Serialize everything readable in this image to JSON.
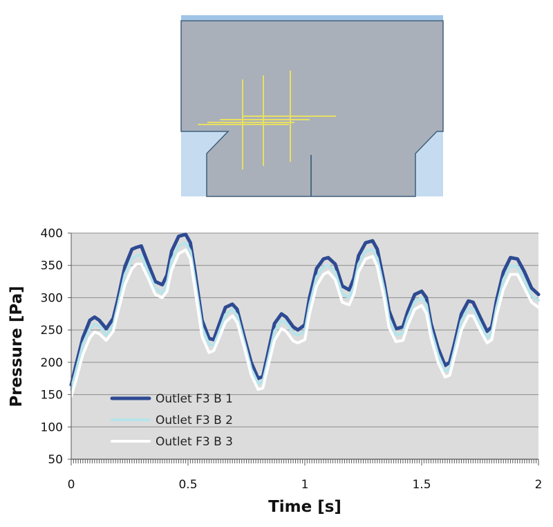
{
  "geometry_panel": {
    "colors": {
      "background": "#c5dbf0",
      "body": "#a9b0ba",
      "outline": "#3e5f7a",
      "probe_lines": "#e9df63"
    }
  },
  "chart_data": {
    "type": "line",
    "xlabel": "Time [s]",
    "ylabel": "Pressure [Pa]",
    "xlim": [
      0,
      2
    ],
    "ylim": [
      50,
      400
    ],
    "x_ticks": [
      {
        "value": 0,
        "label": "0"
      },
      {
        "value": 0.5,
        "label": "0.5"
      },
      {
        "value": 1,
        "label": "1"
      },
      {
        "value": 1.5,
        "label": "1.5"
      },
      {
        "value": 2,
        "label": "2"
      }
    ],
    "y_ticks": [
      {
        "value": 50,
        "label": "50"
      },
      {
        "value": 100,
        "label": "100"
      },
      {
        "value": 150,
        "label": "150"
      },
      {
        "value": 200,
        "label": "200"
      },
      {
        "value": 250,
        "label": "250"
      },
      {
        "value": 300,
        "label": "300"
      },
      {
        "value": 350,
        "label": "350"
      },
      {
        "value": 400,
        "label": "400"
      }
    ],
    "grid": true,
    "legend_position": "lower-left",
    "plot_background": "#dcdcdc",
    "x": [
      0,
      0.02,
      0.05,
      0.08,
      0.1,
      0.12,
      0.15,
      0.18,
      0.2,
      0.23,
      0.26,
      0.28,
      0.3,
      0.33,
      0.36,
      0.39,
      0.41,
      0.43,
      0.46,
      0.49,
      0.51,
      0.53,
      0.56,
      0.59,
      0.61,
      0.63,
      0.66,
      0.69,
      0.71,
      0.74,
      0.77,
      0.8,
      0.82,
      0.84,
      0.87,
      0.9,
      0.92,
      0.95,
      0.97,
      1.0,
      1.02,
      1.05,
      1.08,
      1.1,
      1.13,
      1.16,
      1.19,
      1.21,
      1.23,
      1.26,
      1.29,
      1.31,
      1.34,
      1.36,
      1.39,
      1.42,
      1.44,
      1.47,
      1.5,
      1.52,
      1.54,
      1.57,
      1.6,
      1.62,
      1.64,
      1.67,
      1.7,
      1.72,
      1.75,
      1.78,
      1.8,
      1.82,
      1.85,
      1.88,
      1.91,
      1.94,
      1.97,
      2.0
    ],
    "series": [
      {
        "name": "Outlet F3 B 1",
        "color": "#2e4a92",
        "line_width": 5,
        "values": [
          165,
          195,
          238,
          265,
          270,
          265,
          252,
          268,
          298,
          348,
          375,
          378,
          380,
          352,
          325,
          320,
          335,
          372,
          395,
          398,
          385,
          340,
          265,
          237,
          235,
          255,
          285,
          290,
          282,
          240,
          200,
          175,
          178,
          210,
          260,
          275,
          270,
          255,
          250,
          258,
          300,
          345,
          360,
          362,
          352,
          318,
          312,
          330,
          365,
          385,
          388,
          375,
          322,
          280,
          252,
          255,
          278,
          305,
          310,
          300,
          260,
          222,
          195,
          200,
          228,
          275,
          295,
          293,
          270,
          248,
          255,
          295,
          340,
          362,
          360,
          340,
          315,
          305
        ]
      },
      {
        "name": "Outlet F3 B 2",
        "color": "#b6e4ea",
        "line_width": 4,
        "values": [
          158,
          186,
          228,
          252,
          259,
          256,
          242,
          257,
          288,
          336,
          360,
          365,
          366,
          340,
          314,
          307,
          322,
          358,
          380,
          385,
          372,
          326,
          254,
          228,
          226,
          244,
          274,
          282,
          273,
          232,
          190,
          167,
          170,
          200,
          248,
          265,
          261,
          245,
          242,
          248,
          288,
          332,
          348,
          350,
          340,
          306,
          300,
          318,
          352,
          372,
          375,
          361,
          311,
          268,
          242,
          245,
          268,
          294,
          300,
          289,
          250,
          212,
          186,
          190,
          218,
          264,
          284,
          283,
          260,
          238,
          245,
          284,
          328,
          350,
          348,
          328,
          303,
          296
        ]
      },
      {
        "name": "Outlet F3 B 3",
        "color": "#ffffff",
        "line_width": 4,
        "values": [
          147,
          172,
          212,
          238,
          247,
          244,
          234,
          248,
          278,
          320,
          345,
          352,
          352,
          330,
          305,
          300,
          310,
          343,
          368,
          374,
          360,
          313,
          240,
          215,
          218,
          235,
          262,
          272,
          262,
          224,
          181,
          158,
          160,
          190,
          234,
          252,
          248,
          233,
          230,
          235,
          275,
          318,
          336,
          340,
          328,
          293,
          289,
          306,
          340,
          360,
          364,
          348,
          298,
          254,
          232,
          234,
          256,
          282,
          288,
          276,
          238,
          200,
          177,
          180,
          208,
          250,
          272,
          272,
          250,
          230,
          235,
          272,
          313,
          336,
          336,
          315,
          293,
          285
        ]
      }
    ]
  }
}
